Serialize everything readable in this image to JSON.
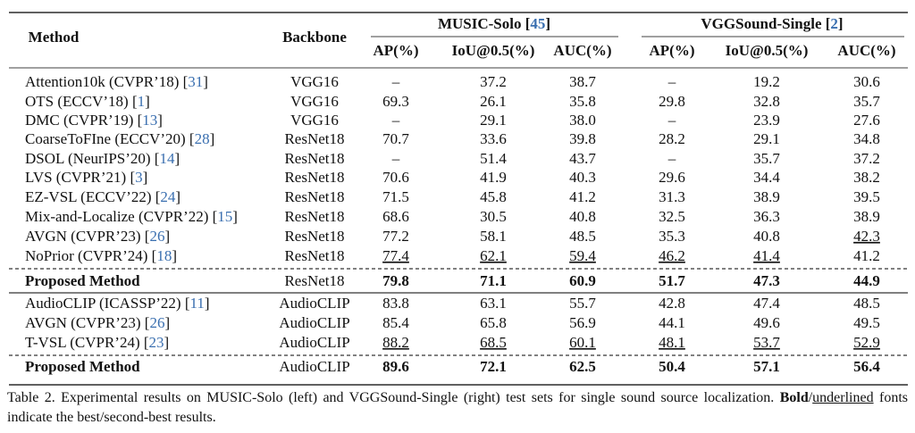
{
  "header": {
    "method": "Method",
    "backbone": "Backbone",
    "groups": [
      "MUSIC-Solo [45]",
      "VGGSound-Single [2]"
    ],
    "metrics": [
      "AP(%)",
      "IoU@0.5(%)",
      "AUC(%)",
      "AP(%)",
      "IoU@0.5(%)",
      "AUC(%)"
    ]
  },
  "table": {
    "rows": [
      {
        "method": "Attention10k (CVPR’18) [31]",
        "backbone": "VGG16",
        "values": [
          "–",
          "37.2",
          "38.7",
          "–",
          "19.2",
          "30.6"
        ]
      },
      {
        "method": "OTS (ECCV’18) [1]",
        "backbone": "VGG16",
        "values": [
          "69.3",
          "26.1",
          "35.8",
          "29.8",
          "32.8",
          "35.7"
        ]
      },
      {
        "method": "DMC (CVPR’19) [13]",
        "backbone": "VGG16",
        "values": [
          "–",
          "29.1",
          "38.0",
          "–",
          "23.9",
          "27.6"
        ]
      },
      {
        "method": "CoarseToFIne (ECCV’20) [28]",
        "backbone": "ResNet18",
        "values": [
          "70.7",
          "33.6",
          "39.8",
          "28.2",
          "29.1",
          "34.8"
        ]
      },
      {
        "method": "DSOL (NeurIPS’20) [14]",
        "backbone": "ResNet18",
        "values": [
          "–",
          "51.4",
          "43.7",
          "–",
          "35.7",
          "37.2"
        ]
      },
      {
        "method": "LVS (CVPR’21) [3]",
        "backbone": "ResNet18",
        "values": [
          "70.6",
          "41.9",
          "40.3",
          "29.6",
          "34.4",
          "38.2"
        ]
      },
      {
        "method": "EZ-VSL (ECCV’22) [24]",
        "backbone": "ResNet18",
        "values": [
          "71.5",
          "45.8",
          "41.2",
          "31.3",
          "38.9",
          "39.5"
        ]
      },
      {
        "method": "Mix-and-Localize (CVPR’22) [15]",
        "backbone": "ResNet18",
        "values": [
          "68.6",
          "30.5",
          "40.8",
          "32.5",
          "36.3",
          "38.9"
        ]
      },
      {
        "method": "AVGN (CVPR’23) [26]",
        "backbone": "ResNet18",
        "values": [
          "77.2",
          "58.1",
          "48.5",
          "35.3",
          "40.8",
          {
            "text": "42.3",
            "underline": true
          }
        ]
      },
      {
        "method": "NoPrior (CVPR’24) [18]",
        "backbone": "ResNet18",
        "values": [
          {
            "text": "77.4",
            "underline": true
          },
          {
            "text": "62.1",
            "underline": true
          },
          {
            "text": "59.4",
            "underline": true
          },
          {
            "text": "46.2",
            "underline": true
          },
          {
            "text": "41.4",
            "underline": true
          },
          "41.2"
        ]
      },
      {
        "method": "Proposed Method",
        "backbone": "ResNet18",
        "bold": true,
        "values": [
          "79.8",
          "71.1",
          "60.9",
          "51.7",
          "47.3",
          "44.9"
        ]
      },
      {
        "method": "AudioCLIP (ICASSP’22) [11]",
        "backbone": "AudioCLIP",
        "values": [
          "83.8",
          "63.1",
          "55.7",
          "42.8",
          "47.4",
          "48.5"
        ]
      },
      {
        "method": "AVGN (CVPR’23) [26]",
        "backbone": "AudioCLIP",
        "values": [
          "85.4",
          "65.8",
          "56.9",
          "44.1",
          "49.6",
          "49.5"
        ]
      },
      {
        "method": "T-VSL (CVPR’24) [23]",
        "backbone": "AudioCLIP",
        "values": [
          {
            "text": "88.2",
            "underline": true
          },
          {
            "text": "68.5",
            "underline": true
          },
          {
            "text": "60.1",
            "underline": true
          },
          {
            "text": "48.1",
            "underline": true
          },
          {
            "text": "53.7",
            "underline": true
          },
          {
            "text": "52.9",
            "underline": true
          }
        ]
      },
      {
        "method": "Proposed Method",
        "backbone": "AudioCLIP",
        "bold": true,
        "values": [
          "89.6",
          "72.1",
          "62.5",
          "50.4",
          "57.1",
          "56.4"
        ]
      }
    ]
  },
  "caption": [
    {
      "text": "Table 2. Experimental results on MUSIC-Solo (left) and VGGSound-Single (right) test sets for single sound source localization. "
    },
    {
      "text": "Bold",
      "style": "bold"
    },
    {
      "text": "/"
    },
    {
      "text": "underlined",
      "style": "underline"
    },
    {
      "text": " fonts indicate the best/second-best results."
    }
  ]
}
